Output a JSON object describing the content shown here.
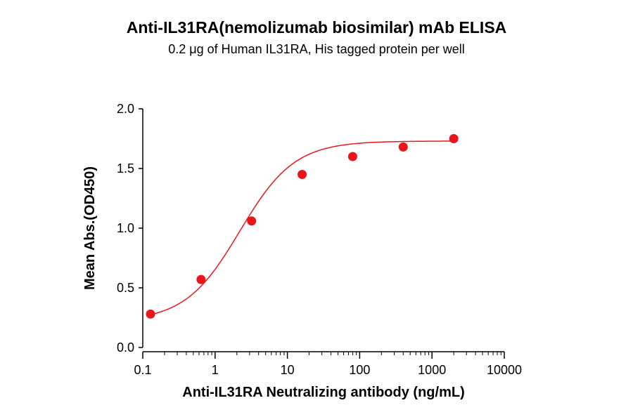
{
  "chart_data": {
    "type": "scatter",
    "title": "Anti-IL31RA(nemolizumab biosimilar) mAb ELISA",
    "subtitle": "0.2 μg of Human IL31RA, His tagged protein per well",
    "xlabel": "Anti-IL31RA Neutralizing antibody (ng/mL)",
    "ylabel": "Mean Abs.(OD450)",
    "x_scale": "log",
    "xlim": [
      0.1,
      10000
    ],
    "ylim": [
      0,
      2.0
    ],
    "x_ticks": [
      {
        "value": 0.1,
        "label": "0.1"
      },
      {
        "value": 1,
        "label": "1"
      },
      {
        "value": 10,
        "label": "10"
      },
      {
        "value": 100,
        "label": "100"
      },
      {
        "value": 1000,
        "label": "1000"
      },
      {
        "value": 10000,
        "label": "10000"
      }
    ],
    "y_ticks": [
      {
        "value": 0,
        "label": "0.0"
      },
      {
        "value": 0.5,
        "label": "0.5"
      },
      {
        "value": 1.0,
        "label": "1.0"
      },
      {
        "value": 1.5,
        "label": "1.5"
      },
      {
        "value": 2.0,
        "label": "2.0"
      }
    ],
    "grid": false,
    "colors": {
      "series": "#e8161b",
      "axis": "#000000"
    },
    "series": [
      {
        "x": [
          0.128,
          0.64,
          3.2,
          16,
          80,
          400,
          2000
        ],
        "y": [
          0.28,
          0.57,
          1.06,
          1.45,
          1.6,
          1.68,
          1.75
        ],
        "fit": "4PL"
      }
    ]
  }
}
